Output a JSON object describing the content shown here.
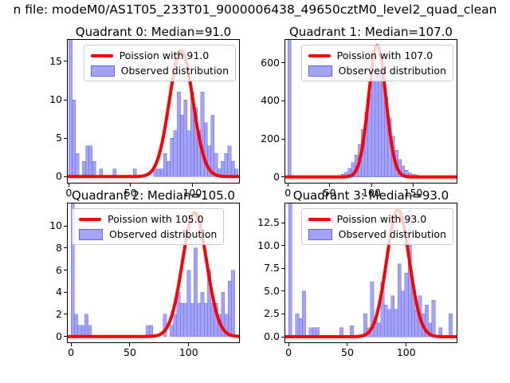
{
  "header": {
    "title": "n file: modeM0/AS1T05_233T01_9000006438_49650cztM0_level2_quad_clean"
  },
  "colors": {
    "hist_fill": "rgba(88,88,240,0.55)",
    "hist_edge": "rgba(88,88,240,0.75)",
    "curve": "#ff0000",
    "spine": "#000000",
    "text": "#000000",
    "legend_border": "#cccccc"
  },
  "chart_data": {
    "type": "histogram",
    "quadrants": [
      {
        "title": "Quadrant 0: Median=91.0",
        "median": 91.0,
        "legend": {
          "line_label": "Poission with 91.0",
          "patch_label": "Observed distribution"
        },
        "xlim": [
          -1.5,
          138.5
        ],
        "ylim": [
          -0.9,
          17.9
        ],
        "xticks": [
          0,
          50,
          100
        ],
        "xticklabels": [
          "0",
          "50",
          "100"
        ],
        "yticks": [
          0,
          5,
          10,
          15
        ],
        "yticklabels": [
          "0",
          "5",
          "10",
          "15"
        ],
        "binwidth": 2.74,
        "bars": [
          [
            0,
            17.9
          ],
          [
            2.7,
            10
          ],
          [
            5.5,
            3
          ],
          [
            11,
            2
          ],
          [
            13.7,
            4
          ],
          [
            16.4,
            4
          ],
          [
            19.2,
            2
          ],
          [
            24.7,
            1
          ],
          [
            35.6,
            1
          ],
          [
            52.1,
            1
          ],
          [
            68.5,
            1
          ],
          [
            71.2,
            1
          ],
          [
            74,
            1
          ],
          [
            76.7,
            3
          ],
          [
            79.5,
            2
          ],
          [
            82.2,
            5
          ],
          [
            84.9,
            6
          ],
          [
            87.7,
            11
          ],
          [
            90.4,
            8
          ],
          [
            93.1,
            10
          ],
          [
            95.9,
            6
          ],
          [
            98.6,
            11
          ],
          [
            101.4,
            9
          ],
          [
            104.1,
            6
          ],
          [
            106.8,
            11
          ],
          [
            109.6,
            7
          ],
          [
            112.3,
            4
          ],
          [
            115.1,
            8
          ],
          [
            117.8,
            3
          ],
          [
            120.5,
            1
          ],
          [
            123.3,
            2
          ],
          [
            126,
            3
          ],
          [
            128.8,
            4
          ],
          [
            131.5,
            2
          ],
          [
            134.2,
            1
          ]
        ],
        "poisson": {
          "mu": 91.0,
          "sigma": 9.54,
          "amp": 16.4
        }
      },
      {
        "title": "Quadrant 1: Median=107.0",
        "median": 107.0,
        "legend": {
          "line_label": "Poission with 107.0",
          "patch_label": "Observed distribution"
        },
        "xlim": [
          -4,
          203
        ],
        "ylim": [
          -34.5,
          724.5
        ],
        "xticks": [
          0,
          50,
          100,
          150
        ],
        "xticklabels": [
          "0",
          "50",
          "100",
          "150"
        ],
        "yticks": [
          0,
          200,
          400,
          600
        ],
        "yticklabels": [
          "0",
          "200",
          "400",
          "600"
        ],
        "binwidth": 4.0,
        "bars": [
          [
            0,
            724
          ],
          [
            4,
            8
          ],
          [
            8,
            5
          ],
          [
            56,
            5
          ],
          [
            60,
            8
          ],
          [
            64,
            15
          ],
          [
            68,
            25
          ],
          [
            72,
            45
          ],
          [
            76,
            75
          ],
          [
            80,
            115
          ],
          [
            84,
            170
          ],
          [
            88,
            250
          ],
          [
            92,
            340
          ],
          [
            96,
            430
          ],
          [
            100,
            520
          ],
          [
            104,
            560
          ],
          [
            108,
            545
          ],
          [
            112,
            520
          ],
          [
            116,
            420
          ],
          [
            120,
            310
          ],
          [
            124,
            215
          ],
          [
            128,
            140
          ],
          [
            132,
            92
          ],
          [
            136,
            58
          ],
          [
            140,
            36
          ],
          [
            144,
            22
          ],
          [
            148,
            14
          ],
          [
            152,
            10
          ],
          [
            156,
            7
          ],
          [
            160,
            5
          ],
          [
            164,
            4
          ],
          [
            168,
            3
          ],
          [
            172,
            2
          ],
          [
            176,
            2
          ],
          [
            180,
            1
          ],
          [
            184,
            1
          ]
        ],
        "poisson": {
          "mu": 107.0,
          "sigma": 10.34,
          "amp": 690
        }
      },
      {
        "title": "Quadrant 2: Median=105.0",
        "median": 105.0,
        "legend": {
          "line_label": "Poission with 105.0",
          "patch_label": "Observed distribution"
        },
        "xlim": [
          -3.5,
          143.5
        ],
        "ylim": [
          -0.6,
          12.1
        ],
        "xticks": [
          0,
          50,
          100
        ],
        "xticklabels": [
          "0",
          "50",
          "100"
        ],
        "yticks": [
          0,
          2,
          4,
          6,
          8,
          10
        ],
        "yticklabels": [
          "0",
          "2",
          "4",
          "6",
          "8",
          "10"
        ],
        "binwidth": 2.9,
        "bars": [
          [
            0,
            12.1
          ],
          [
            2.9,
            2
          ],
          [
            5.8,
            1
          ],
          [
            8.7,
            1
          ],
          [
            11.6,
            2
          ],
          [
            14.5,
            1
          ],
          [
            63.8,
            1
          ],
          [
            66.7,
            1
          ],
          [
            78.3,
            2
          ],
          [
            84.1,
            1
          ],
          [
            87,
            2
          ],
          [
            89.9,
            4
          ],
          [
            92.8,
            3
          ],
          [
            95.7,
            3
          ],
          [
            98.6,
            6
          ],
          [
            101.5,
            3
          ],
          [
            104.4,
            8
          ],
          [
            107.3,
            3
          ],
          [
            110.2,
            4
          ],
          [
            113.1,
            3
          ],
          [
            116,
            6
          ],
          [
            118.9,
            3
          ],
          [
            121.8,
            3
          ],
          [
            124.7,
            2
          ],
          [
            127.6,
            4
          ],
          [
            130.5,
            2
          ],
          [
            133.4,
            5
          ],
          [
            136.3,
            6
          ]
        ],
        "poisson": {
          "mu": 105.0,
          "sigma": 10.25,
          "amp": 11.2
        }
      },
      {
        "title": "Quadrant 3: Median=93.0",
        "median": 93.0,
        "legend": {
          "line_label": "Poission with 93.0",
          "patch_label": "Observed distribution"
        },
        "xlim": [
          -3.5,
          143.5
        ],
        "ylim": [
          -0.7,
          14.7
        ],
        "xticks": [
          0,
          50,
          100
        ],
        "xticklabels": [
          "0",
          "50",
          "100"
        ],
        "yticks": [
          0,
          2.5,
          5,
          7.5,
          10,
          12.5
        ],
        "yticklabels": [
          "0.0",
          "2.5",
          "5.0",
          "7.5",
          "10.0",
          "12.5"
        ],
        "binwidth": 2.9,
        "bars": [
          [
            0,
            14.7
          ],
          [
            5.8,
            2.5
          ],
          [
            8.7,
            2
          ],
          [
            11.6,
            5
          ],
          [
            17.4,
            1
          ],
          [
            20.3,
            1
          ],
          [
            23.2,
            1
          ],
          [
            43.5,
            1
          ],
          [
            52.2,
            1.2
          ],
          [
            63.8,
            2.5
          ],
          [
            66.7,
            1
          ],
          [
            69.6,
            6
          ],
          [
            72.5,
            2
          ],
          [
            75.4,
            1.5
          ],
          [
            78.3,
            6
          ],
          [
            81.2,
            3.5
          ],
          [
            84.1,
            3
          ],
          [
            87,
            4.5
          ],
          [
            89.9,
            3
          ],
          [
            92.8,
            8
          ],
          [
            95.7,
            5
          ],
          [
            98.6,
            7
          ],
          [
            101.5,
            13.9
          ],
          [
            104.4,
            5.5
          ],
          [
            107.3,
            3
          ],
          [
            110.2,
            4.5
          ],
          [
            113.1,
            2.5
          ],
          [
            116,
            3.5
          ],
          [
            118.9,
            1.5
          ],
          [
            121.8,
            4
          ],
          [
            127.6,
            1
          ],
          [
            136.3,
            2.5
          ]
        ],
        "poisson": {
          "mu": 93.0,
          "sigma": 9.64,
          "amp": 13.9
        }
      }
    ]
  }
}
